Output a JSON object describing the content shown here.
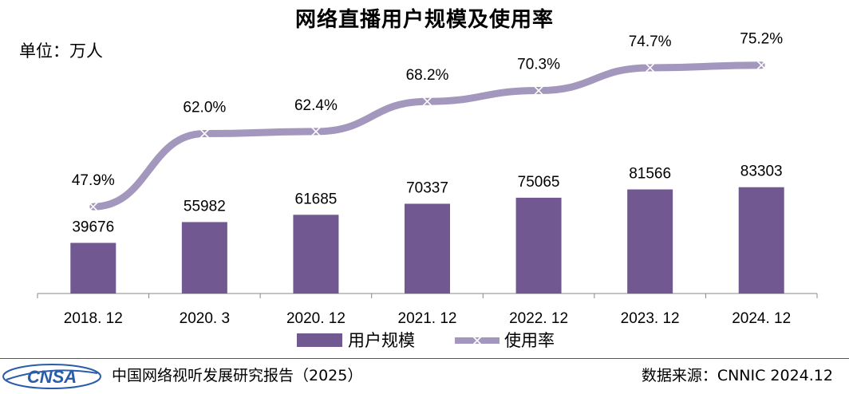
{
  "chart_data": {
    "type": "bar+line",
    "title": "网络直播用户规模及使用率",
    "unit_label": "单位：万人",
    "categories": [
      "2018. 12",
      "2020. 3",
      "2020. 12",
      "2021. 12",
      "2022. 12",
      "2023. 12",
      "2024. 12"
    ],
    "series": [
      {
        "name": "用户规模",
        "type": "bar",
        "values": [
          39676,
          55982,
          61685,
          70337,
          75065,
          81566,
          83303
        ],
        "labels": [
          "39676",
          "55982",
          "61685",
          "70337",
          "75065",
          "81566",
          "83303"
        ]
      },
      {
        "name": "使用率",
        "type": "line",
        "values": [
          47.9,
          62.0,
          62.4,
          68.2,
          70.3,
          74.7,
          75.2
        ],
        "labels": [
          "47.9%",
          "62.0%",
          "62.4%",
          "68.2%",
          "70.3%",
          "74.7%",
          "75.2%"
        ]
      }
    ],
    "ylim_bar": [
      0,
      100000
    ],
    "ylim_line": [
      0,
      100
    ],
    "grid": false,
    "legend_position": "bottom",
    "colors": {
      "bar": "#715891",
      "line": "#A497BE",
      "axis": "#888888"
    }
  },
  "footer": {
    "logo_text": "CNSA",
    "report": "中国网络视听发展研究报告（2025）",
    "source": "数据来源：CNNIC  2024.12"
  }
}
